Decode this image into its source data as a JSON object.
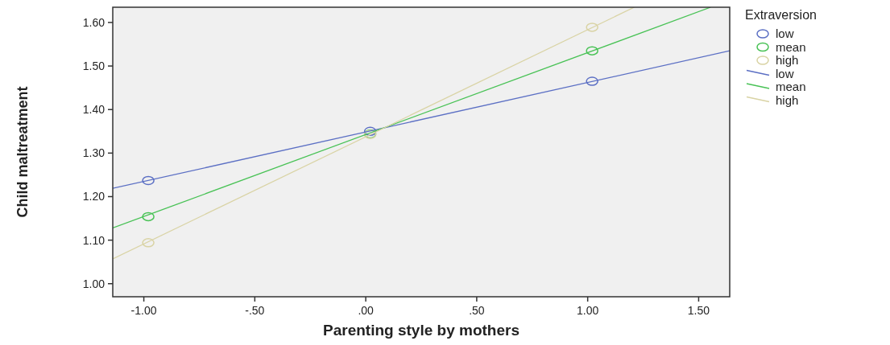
{
  "chart_data": {
    "type": "scatter",
    "xlabel": "Parenting style by mothers",
    "ylabel": "Child maltreatment",
    "legend_title": "Extraversion",
    "legend": "top right",
    "marker": "circle",
    "grid": false,
    "xlim": [
      -1.14,
      1.64
    ],
    "xticks": [
      {
        "value": -1,
        "label": "-1.00"
      },
      {
        "value": -0.5,
        "label": "-.50"
      },
      {
        "value": 0,
        "label": ".00"
      },
      {
        "value": 0.5,
        "label": ".50"
      },
      {
        "value": 1,
        "label": "1.00"
      },
      {
        "value": 1.5,
        "label": "1.50"
      }
    ],
    "ylim": [
      0.97,
      1.635
    ],
    "yticks": [
      {
        "value": 1,
        "label": "1.00"
      },
      {
        "value": 1.1,
        "label": "1.10"
      },
      {
        "value": 1.2,
        "label": "1.20"
      },
      {
        "value": 1.3,
        "label": "1.30"
      },
      {
        "value": 1.4,
        "label": "1.40"
      },
      {
        "value": 1.5,
        "label": "1.50"
      },
      {
        "value": 1.6,
        "label": "1.60"
      }
    ],
    "series": [
      {
        "name": "low",
        "color": "#5b6fc4",
        "x": [
          -0.98,
          0.02,
          1.02
        ],
        "values": [
          1.237,
          1.35,
          1.465
        ]
      },
      {
        "name": "mean",
        "color": "#48c255",
        "x": [
          -0.98,
          0.02,
          1.02
        ],
        "values": [
          1.154,
          1.344,
          1.535
        ]
      },
      {
        "name": "high",
        "color": "#d9d3a4",
        "x": [
          -0.98,
          0.02,
          1.02
        ],
        "values": [
          1.094,
          1.343,
          1.589
        ]
      },
      {
        "name": "low",
        "type": "line",
        "marker": "none",
        "color": "#5b6fc4",
        "x": [
          -1.14,
          1.64
        ],
        "values": [
          1.219,
          1.535
        ]
      },
      {
        "name": "mean",
        "type": "line",
        "marker": "none",
        "color": "#48c255",
        "x": [
          -1.14,
          1.554
        ],
        "values": [
          1.128,
          1.635
        ]
      },
      {
        "name": "high",
        "type": "line",
        "marker": "none",
        "color": "#d9d3a4",
        "x": [
          -1.14,
          1.21
        ],
        "values": [
          1.057,
          1.635
        ]
      }
    ]
  }
}
